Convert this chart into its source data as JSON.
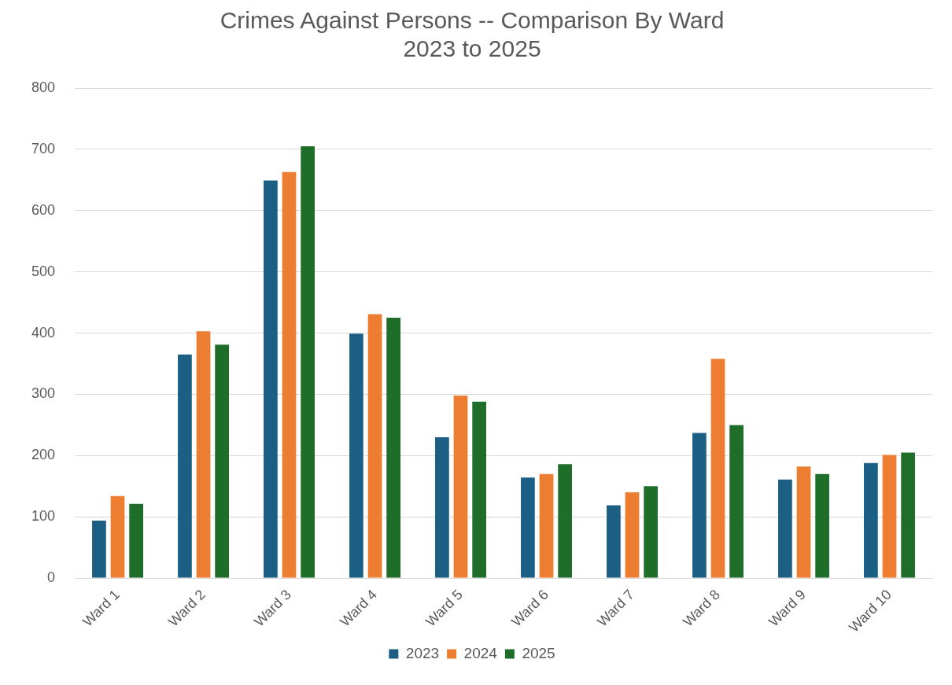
{
  "chart_data": {
    "type": "bar",
    "title": [
      "Crimes Against Persons -- Comparison By Ward",
      "2023 to 2025"
    ],
    "categories": [
      "Ward 1",
      "Ward 2",
      "Ward 3",
      "Ward 4",
      "Ward 5",
      "Ward 6",
      "Ward 7",
      "Ward 8",
      "Ward 9",
      "Ward 10"
    ],
    "series": [
      {
        "name": "2023",
        "color": "#1b5f85",
        "values": [
          94,
          365,
          649,
          399,
          230,
          164,
          119,
          237,
          161,
          188
        ]
      },
      {
        "name": "2024",
        "color": "#ed7d31",
        "values": [
          134,
          403,
          663,
          431,
          298,
          170,
          140,
          358,
          182,
          201
        ]
      },
      {
        "name": "2025",
        "color": "#1e6e2a",
        "values": [
          121,
          381,
          705,
          425,
          288,
          186,
          150,
          250,
          170,
          205
        ]
      }
    ],
    "ylim": [
      0,
      800
    ],
    "yticks": [
      0,
      100,
      200,
      300,
      400,
      500,
      600,
      700,
      800
    ],
    "grid": "y",
    "legend": "bottom"
  }
}
